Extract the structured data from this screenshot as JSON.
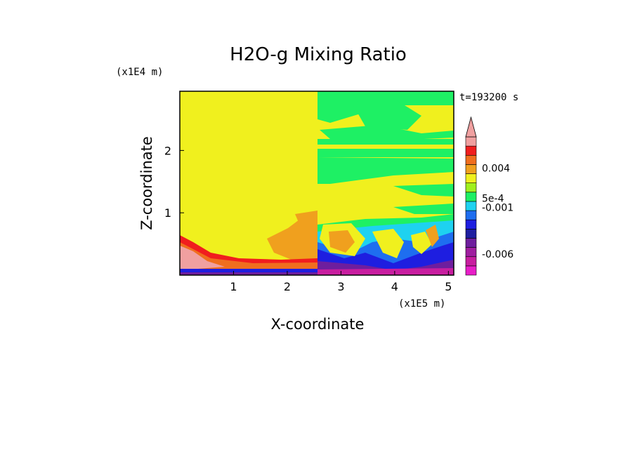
{
  "chart_data": {
    "type": "heatmap",
    "title": "H2O-g Mixing Ratio",
    "xlabel": "X-coordinate",
    "ylabel": "Z-coordinate",
    "x_scale_label": "(x1E5 m)",
    "y_scale_label": "(x1E4 m)",
    "time_label": "t=193200 s",
    "xlim": [
      0,
      5.1
    ],
    "ylim": [
      0,
      2.95
    ],
    "x_ticks": [
      1,
      2,
      3,
      4,
      5
    ],
    "y_ticks": [
      1,
      2
    ],
    "colorbar": {
      "colors": [
        "#e81ec8",
        "#c81ea0",
        "#a01ea0",
        "#6e1e9e",
        "#1e1ea0",
        "#1e1ee0",
        "#1e6ef0",
        "#1ed2f0",
        "#1ef064",
        "#a0f01e",
        "#f0f01e",
        "#f0a01e",
        "#f06e1e",
        "#f01e1e",
        "#f0a0a0"
      ],
      "extend_max": true,
      "labels": [
        {
          "text": "0.004",
          "level": 11.6
        },
        {
          "text": "5e-4",
          "level": 8.35
        },
        {
          "text": "-0.001",
          "level": 7.35
        },
        {
          "text": "-0.006",
          "level": 2.3
        }
      ]
    },
    "regions": [
      {
        "fill": "#f0f01e",
        "x": [
          0,
          5.1
        ],
        "z": [
          0,
          2.95
        ]
      }
    ]
  },
  "colors": {
    "background": "#ffffff",
    "frame": "#000000"
  }
}
